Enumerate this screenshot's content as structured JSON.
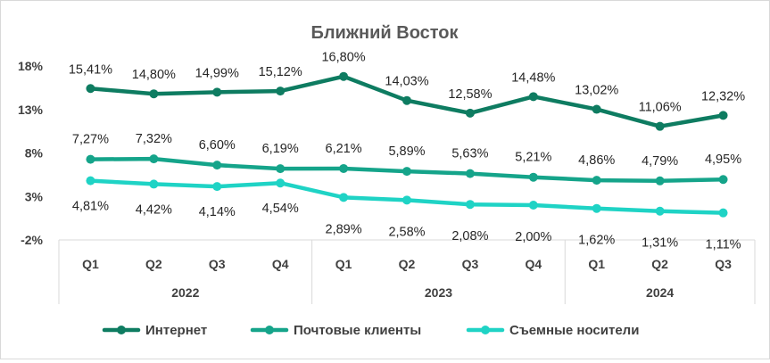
{
  "chart_data": {
    "type": "line",
    "title": "Ближний Восток",
    "xlabel": "",
    "ylabel": "",
    "ylim": [
      -2,
      18
    ],
    "yticks": [
      "-2%",
      "3%",
      "8%",
      "13%",
      "18%"
    ],
    "ytick_values": [
      -2,
      3,
      8,
      13,
      18
    ],
    "categories": [
      "Q1",
      "Q2",
      "Q3",
      "Q4",
      "Q1",
      "Q2",
      "Q3",
      "Q4",
      "Q1",
      "Q2",
      "Q3"
    ],
    "groups": [
      {
        "label": "2022",
        "count": 4
      },
      {
        "label": "2023",
        "count": 4
      },
      {
        "label": "2024",
        "count": 3
      }
    ],
    "grid": false,
    "legend": "bottom",
    "series": [
      {
        "name": "Интернет",
        "color": "#0e7c61",
        "values": [
          15.41,
          14.8,
          14.99,
          15.12,
          16.8,
          14.03,
          12.58,
          14.48,
          13.02,
          11.06,
          12.32
        ],
        "labels": [
          "15,41%",
          "14,80%",
          "14,99%",
          "15,12%",
          "16,80%",
          "14,03%",
          "12,58%",
          "14,48%",
          "13,02%",
          "11,06%",
          "12,32%"
        ]
      },
      {
        "name": "Почтовые клиенты",
        "color": "#15a48a",
        "values": [
          7.27,
          7.32,
          6.6,
          6.19,
          6.21,
          5.89,
          5.63,
          5.21,
          4.86,
          4.79,
          4.95
        ],
        "labels": [
          "7,27%",
          "7,32%",
          "6,60%",
          "6,19%",
          "6,21%",
          "5,89%",
          "5,63%",
          "5,21%",
          "4,86%",
          "4,79%",
          "4,95%"
        ]
      },
      {
        "name": "Съемные носители",
        "color": "#1fd3c5",
        "values": [
          4.81,
          4.42,
          4.14,
          4.54,
          2.89,
          2.58,
          2.08,
          2.0,
          1.62,
          1.31,
          1.11
        ],
        "labels": [
          "4,81%",
          "4,42%",
          "4,14%",
          "4,54%",
          "2,89%",
          "2,58%",
          "2,08%",
          "2,00%",
          "1,62%",
          "1,31%",
          "1,11%"
        ]
      }
    ]
  }
}
